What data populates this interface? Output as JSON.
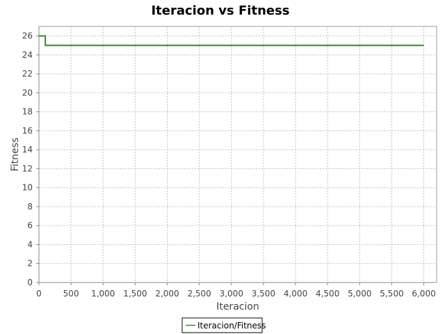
{
  "chart_data": {
    "type": "line",
    "title": "Iteracion vs Fitness",
    "xlabel": "Iteracion",
    "ylabel": "Fitness",
    "xlim": [
      0,
      6200
    ],
    "ylim": [
      0,
      27
    ],
    "x_ticks": [
      0,
      500,
      1000,
      1500,
      2000,
      2500,
      3000,
      3500,
      4000,
      4500,
      5000,
      5500,
      6000
    ],
    "x_tick_labels": [
      "0",
      "500",
      "1,000",
      "1,500",
      "2,000",
      "2,500",
      "3,000",
      "3,500",
      "4,000",
      "4,500",
      "5,000",
      "5,500",
      "6,000"
    ],
    "y_ticks": [
      0,
      2,
      4,
      6,
      8,
      10,
      12,
      14,
      16,
      18,
      20,
      22,
      24,
      26
    ],
    "y_tick_labels": [
      "0",
      "2",
      "4",
      "6",
      "8",
      "10",
      "12",
      "14",
      "16",
      "18",
      "20",
      "22",
      "24",
      "26"
    ],
    "grid": true,
    "legend_position": "bottom",
    "series": [
      {
        "name": "Iteracion/Fitness",
        "color": "#2a8a2a",
        "x": [
          0,
          100,
          100,
          6000
        ],
        "y": [
          26,
          26,
          25,
          25
        ]
      }
    ]
  }
}
